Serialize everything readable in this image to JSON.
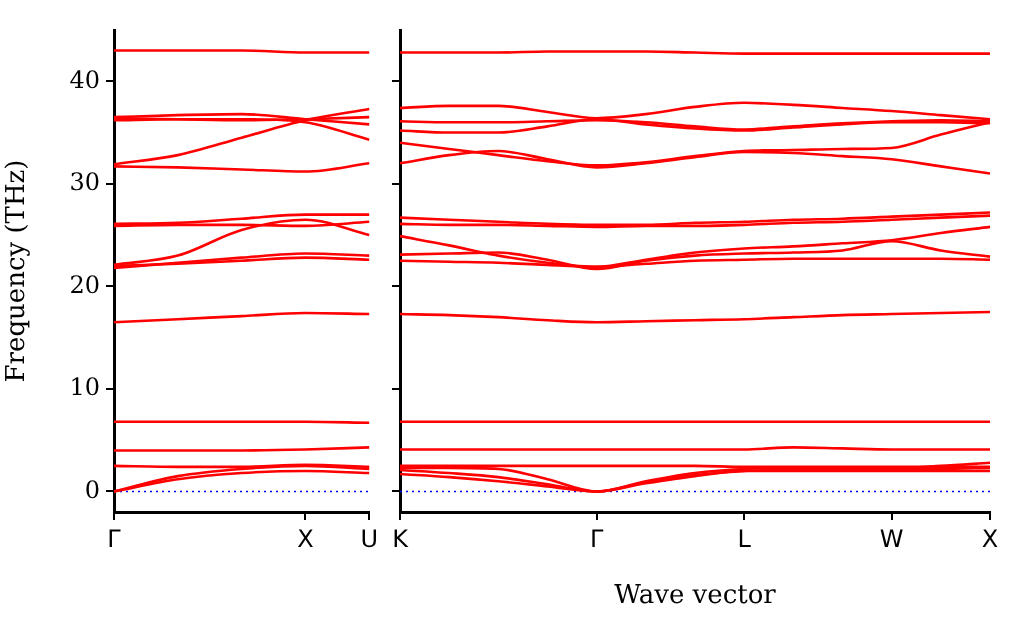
{
  "chart_data": [
    {
      "type": "line",
      "ylabel": "Frequency (THz)",
      "categories": [
        "Γ",
        null,
        null,
        "X",
        "U"
      ],
      "ylim": [
        -2,
        45
      ],
      "yticks": [
        0,
        10,
        20,
        30,
        40
      ],
      "grid": false,
      "ref_lines": [
        {
          "axis": "y",
          "value": 0,
          "color": "#0000ff",
          "line_style": "dotted"
        }
      ],
      "series": [
        {
          "color": "#ff0000",
          "values": [
            0,
            1.2,
            1.8,
            2.0,
            1.8
          ]
        },
        {
          "color": "#ff0000",
          "values": [
            0,
            1.5,
            2.2,
            2.5,
            2.2
          ]
        },
        {
          "color": "#ff0000",
          "values": [
            2.5,
            2.4,
            2.4,
            2.6,
            2.4
          ]
        },
        {
          "color": "#ff0000",
          "values": [
            4.0,
            4.0,
            4.0,
            4.1,
            4.3
          ]
        },
        {
          "color": "#ff0000",
          "values": [
            6.8,
            6.8,
            6.8,
            6.8,
            6.7
          ]
        },
        {
          "color": "#ff0000",
          "values": [
            16.5,
            16.8,
            17.1,
            17.4,
            17.3
          ]
        },
        {
          "color": "#ff0000",
          "values": [
            22.0,
            22.2,
            22.5,
            22.8,
            22.6
          ]
        },
        {
          "color": "#ff0000",
          "values": [
            21.8,
            22.3,
            22.8,
            23.2,
            23.0
          ]
        },
        {
          "color": "#ff0000",
          "values": [
            22.1,
            23.0,
            25.5,
            26.5,
            25.0
          ]
        },
        {
          "color": "#ff0000",
          "values": [
            26.1,
            26.2,
            26.6,
            27.0,
            27.0
          ]
        },
        {
          "color": "#ff0000",
          "values": [
            25.9,
            26.0,
            26.0,
            25.9,
            26.3
          ]
        },
        {
          "color": "#ff0000",
          "values": [
            31.7,
            31.6,
            31.4,
            31.2,
            32.0
          ]
        },
        {
          "color": "#ff0000",
          "values": [
            31.9,
            32.8,
            34.5,
            36.2,
            37.3
          ]
        },
        {
          "color": "#ff0000",
          "values": [
            36.2,
            36.3,
            36.3,
            36.0,
            34.3
          ]
        },
        {
          "color": "#ff0000",
          "values": [
            36.5,
            36.7,
            36.8,
            36.3,
            35.8
          ]
        },
        {
          "color": "#ff0000",
          "values": [
            36.4,
            36.3,
            36.2,
            36.3,
            36.5
          ]
        },
        {
          "color": "#ff0000",
          "values": [
            43.0,
            43.0,
            43.0,
            42.8,
            42.8
          ]
        }
      ]
    },
    {
      "type": "line",
      "xlabel": "Wave vector",
      "categories": [
        "K",
        null,
        null,
        null,
        "Γ",
        null,
        null,
        "L",
        null,
        null,
        "W",
        null,
        "X"
      ],
      "ylim": [
        -2,
        45
      ],
      "yticks": [
        {
          "value": 0,
          "label": null
        },
        {
          "value": 10,
          "label": null
        },
        {
          "value": 20,
          "label": null
        },
        {
          "value": 30,
          "label": null
        },
        {
          "value": 40,
          "label": null
        }
      ],
      "tick_labels": "x",
      "grid": false,
      "ref_lines": [
        {
          "axis": "y",
          "value": 0,
          "color": "#0000ff",
          "line_style": "dotted"
        }
      ],
      "series": [
        {
          "color": "#ff0000",
          "values": [
            1.7,
            1.4,
            1.0,
            0.5,
            0,
            0.8,
            1.5,
            2.0,
            2.0,
            2.0,
            2.0,
            2.0,
            2.0
          ]
        },
        {
          "color": "#ff0000",
          "values": [
            2.1,
            1.8,
            1.4,
            0.7,
            0,
            0.9,
            1.6,
            2.0,
            2.1,
            2.1,
            2.2,
            2.2,
            2.3
          ]
        },
        {
          "color": "#ff0000",
          "values": [
            2.3,
            2.3,
            2.2,
            1.2,
            0,
            1.0,
            1.8,
            2.2,
            2.3,
            2.3,
            2.3,
            2.5,
            2.8
          ]
        },
        {
          "color": "#ff0000",
          "values": [
            2.5,
            2.5,
            2.5,
            2.5,
            2.5,
            2.5,
            2.5,
            2.4,
            2.4,
            2.4,
            2.4,
            2.4,
            2.4
          ]
        },
        {
          "color": "#ff0000",
          "values": [
            4.1,
            4.1,
            4.1,
            4.1,
            4.1,
            4.1,
            4.1,
            4.1,
            4.3,
            4.2,
            4.1,
            4.1,
            4.1
          ]
        },
        {
          "color": "#ff0000",
          "values": [
            6.8,
            6.8,
            6.8,
            6.8,
            6.8,
            6.8,
            6.8,
            6.8,
            6.8,
            6.8,
            6.8,
            6.8,
            6.8
          ]
        },
        {
          "color": "#ff0000",
          "values": [
            17.3,
            17.2,
            17.0,
            16.7,
            16.5,
            16.6,
            16.7,
            16.8,
            17.0,
            17.2,
            17.3,
            17.4,
            17.5
          ]
        },
        {
          "color": "#ff0000",
          "values": [
            22.5,
            22.4,
            22.3,
            22.1,
            21.9,
            22.2,
            22.5,
            22.6,
            22.7,
            22.7,
            22.7,
            22.7,
            22.6
          ]
        },
        {
          "color": "#ff0000",
          "values": [
            23.1,
            23.2,
            23.3,
            22.6,
            21.7,
            22.5,
            23.0,
            23.2,
            23.3,
            23.5,
            24.4,
            23.5,
            22.9
          ]
        },
        {
          "color": "#ff0000",
          "values": [
            24.9,
            24.0,
            23.0,
            22.3,
            21.9,
            22.6,
            23.3,
            23.7,
            23.9,
            24.2,
            24.5,
            25.2,
            25.8
          ]
        },
        {
          "color": "#ff0000",
          "values": [
            26.1,
            26.0,
            26.0,
            25.9,
            25.8,
            25.9,
            25.9,
            26.0,
            26.2,
            26.3,
            26.5,
            26.7,
            26.9
          ]
        },
        {
          "color": "#ff0000",
          "values": [
            26.7,
            26.5,
            26.3,
            26.1,
            26.0,
            26.0,
            26.2,
            26.3,
            26.5,
            26.6,
            26.8,
            27.0,
            27.2
          ]
        },
        {
          "color": "#ff0000",
          "values": [
            32.0,
            32.8,
            33.2,
            32.4,
            31.6,
            32.0,
            32.6,
            33.1,
            33.0,
            32.7,
            32.4,
            31.7,
            31.0
          ]
        },
        {
          "color": "#ff0000",
          "values": [
            34.0,
            33.4,
            32.8,
            32.2,
            31.8,
            32.1,
            32.7,
            33.2,
            33.3,
            33.4,
            33.5,
            34.8,
            36.0
          ]
        },
        {
          "color": "#ff0000",
          "values": [
            35.2,
            35.0,
            35.0,
            35.6,
            36.3,
            35.8,
            35.4,
            35.2,
            35.5,
            35.8,
            36.0,
            36.0,
            35.9
          ]
        },
        {
          "color": "#ff0000",
          "values": [
            36.1,
            36.0,
            36.0,
            36.1,
            36.2,
            36.0,
            35.6,
            35.3,
            35.6,
            35.9,
            36.1,
            36.2,
            36.1
          ]
        },
        {
          "color": "#ff0000",
          "values": [
            37.4,
            37.6,
            37.6,
            37.0,
            36.4,
            36.8,
            37.5,
            37.9,
            37.7,
            37.4,
            37.1,
            36.7,
            36.3
          ]
        },
        {
          "color": "#ff0000",
          "values": [
            42.8,
            42.8,
            42.8,
            42.9,
            42.9,
            42.9,
            42.8,
            42.7,
            42.7,
            42.7,
            42.7,
            42.7,
            42.7
          ]
        }
      ]
    }
  ]
}
